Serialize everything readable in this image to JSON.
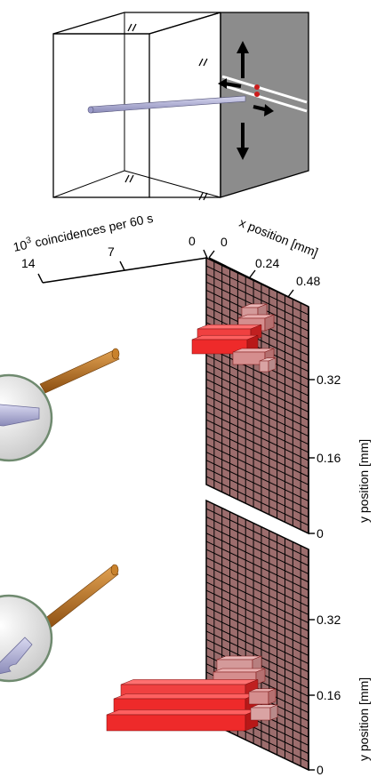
{
  "axes": {
    "coincidence": {
      "label_base": "10",
      "label_exp": "3",
      "label_rest": " coincidences per 60 s",
      "ticks": [
        "14",
        "7",
        "0"
      ]
    },
    "x": {
      "label": "x position [mm]",
      "ticks": [
        "0",
        "0.24",
        "0.48"
      ]
    },
    "y_upper": {
      "label": "y position [mm]",
      "ticks": [
        "0.32",
        "0.16",
        "0"
      ]
    },
    "y_lower": {
      "label": "y position [mm]",
      "ticks": [
        "0.32",
        "0.16",
        "0"
      ]
    }
  },
  "colors": {
    "grid_fill": "#9c6d6d",
    "grid_cell": "#a87b7b",
    "grid_line": "#000000",
    "bar_red": "#ee2a2a",
    "bar_pink": "#d99a9a",
    "needle": "#b0b0d8",
    "handle": "#b87320",
    "lens": "#dcdcdc",
    "cube_face": "#8c8c8c"
  },
  "icons": [
    "magnifier-icon",
    "arrow-up-icon",
    "arrow-down-icon",
    "arrow-left-icon",
    "arrow-right-icon"
  ]
}
